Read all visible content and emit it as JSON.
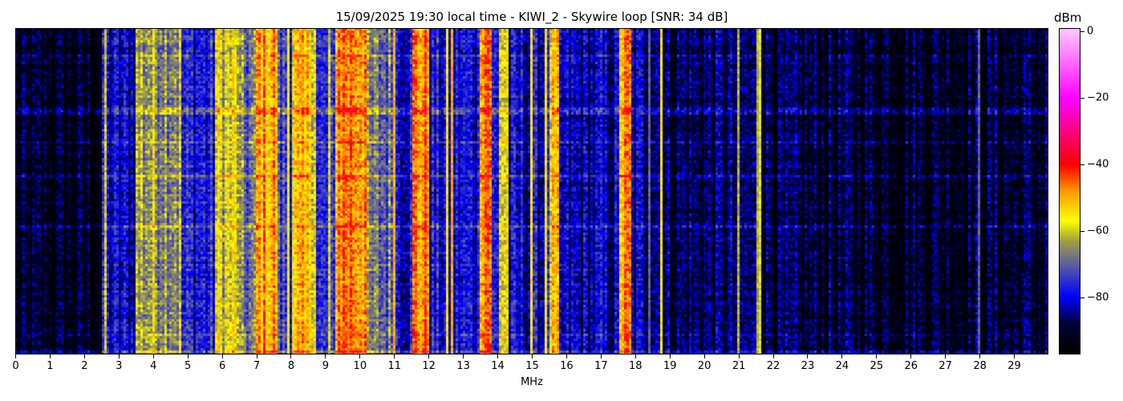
{
  "chart_data": {
    "type": "heatmap",
    "title": "15/09/2025 19:30 local time - KIWI_2 - Skywire loop [SNR: 34 dB]",
    "xlabel": "MHz",
    "ylabel": "",
    "xlim": [
      0,
      30
    ],
    "xticks": [
      "0",
      "1",
      "2",
      "3",
      "4",
      "5",
      "6",
      "7",
      "8",
      "9",
      "10",
      "11",
      "12",
      "13",
      "14",
      "15",
      "16",
      "17",
      "18",
      "19",
      "20",
      "21",
      "22",
      "23",
      "24",
      "25",
      "26",
      "27",
      "28",
      "29"
    ],
    "colorbar": {
      "label": "dBm",
      "range": [
        -97,
        1
      ],
      "ticks": [
        "0",
        "−20",
        "−40",
        "−60",
        "−80"
      ],
      "tick_values": [
        0,
        -20,
        -40,
        -60,
        -80
      ],
      "colormap": [
        [
          -97,
          "#000000"
        ],
        [
          -88,
          "#00003a"
        ],
        [
          -80,
          "#0000ff"
        ],
        [
          -70,
          "#6060a0"
        ],
        [
          -63,
          "#a0a040"
        ],
        [
          -57,
          "#ffff00"
        ],
        [
          -48,
          "#ff9900"
        ],
        [
          -40,
          "#ff0000"
        ],
        [
          -30,
          "#ff0080"
        ],
        [
          -20,
          "#ff00ff"
        ],
        [
          0,
          "#ffc0ff"
        ]
      ]
    },
    "bands_mhz_dbm": [
      [
        0,
        2.5,
        -93
      ],
      [
        2.5,
        3.5,
        -82
      ],
      [
        3.5,
        4.8,
        -64
      ],
      [
        4.8,
        5.8,
        -78
      ],
      [
        5.8,
        6.5,
        -60
      ],
      [
        6.5,
        7.0,
        -70
      ],
      [
        7.0,
        7.6,
        -50
      ],
      [
        7.6,
        8.0,
        -74
      ],
      [
        8.0,
        8.7,
        -55
      ],
      [
        8.7,
        9.3,
        -78
      ],
      [
        9.3,
        10.2,
        -46
      ],
      [
        10.2,
        11.0,
        -70
      ],
      [
        11.0,
        11.5,
        -79
      ],
      [
        11.5,
        12.0,
        -48
      ],
      [
        12.0,
        13.5,
        -80
      ],
      [
        13.5,
        13.8,
        -44
      ],
      [
        13.8,
        14.0,
        -80
      ],
      [
        14.0,
        14.3,
        -58
      ],
      [
        14.3,
        15.5,
        -82
      ],
      [
        15.5,
        15.8,
        -57
      ],
      [
        15.8,
        17.5,
        -84
      ],
      [
        17.5,
        17.9,
        -50
      ],
      [
        17.9,
        18.8,
        -84
      ],
      [
        18.8,
        22.0,
        -88
      ],
      [
        22.0,
        30.0,
        -91
      ]
    ],
    "lines_mhz_dbm": [
      [
        2.6,
        -60
      ],
      [
        7.9,
        -55
      ],
      [
        9.1,
        -60
      ],
      [
        11.0,
        -50
      ],
      [
        12.5,
        -55
      ],
      [
        12.7,
        -50
      ],
      [
        15.0,
        -55
      ],
      [
        15.4,
        -55
      ],
      [
        18.4,
        -70
      ],
      [
        18.75,
        -55
      ],
      [
        21.0,
        -62
      ],
      [
        21.55,
        -62
      ],
      [
        21.6,
        -58
      ],
      [
        28.0,
        -70
      ]
    ]
  }
}
